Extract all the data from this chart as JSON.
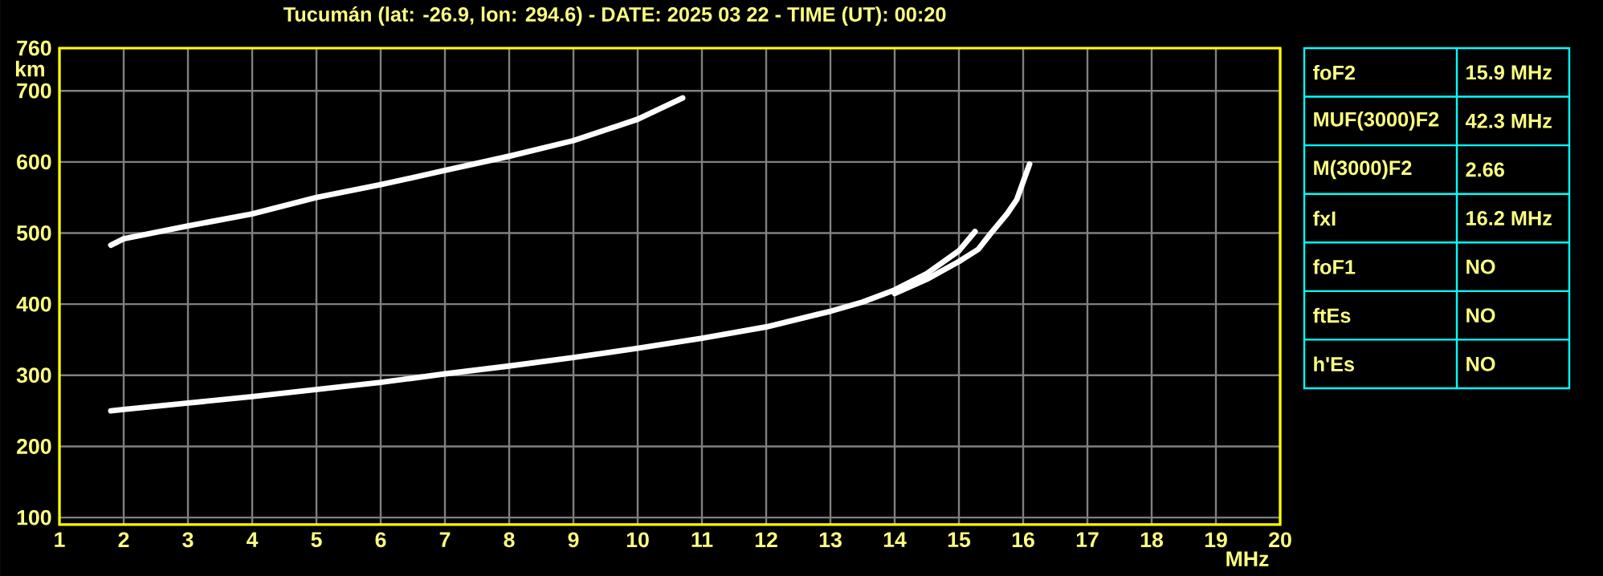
{
  "chart_data": [
    {
      "type": "line",
      "title": "Tucumán (lat: -26.9, lon: 294.6) - DATE: 2025 03 22 - TIME (UT): 00:20",
      "xlabel": "MHz",
      "ylabel": "km",
      "xlim": [
        1,
        20
      ],
      "xticks": [
        1,
        2,
        3,
        4,
        5,
        6,
        7,
        8,
        9,
        10,
        11,
        12,
        13,
        14,
        15,
        16,
        17,
        18,
        19,
        20
      ],
      "ylim": [
        90,
        760
      ],
      "yticks": [
        100,
        200,
        300,
        400,
        500,
        600,
        700,
        760
      ],
      "grid": true,
      "marker": "none",
      "line_style": "solid",
      "series": [
        {
          "color": "#ffffff",
          "x": [
            1.8,
            2,
            3,
            4,
            5,
            6,
            7,
            8,
            9,
            10,
            11,
            12,
            13,
            13.5,
            14,
            14.5,
            15,
            15.25
          ],
          "values": [
            250,
            252,
            261,
            270,
            280,
            290,
            302,
            313,
            325,
            338,
            352,
            368,
            390,
            403,
            420,
            443,
            475,
            502
          ]
        },
        {
          "color": "#ffffff",
          "x": [
            14,
            14.5,
            15,
            15.3,
            15.5,
            15.75,
            15.9,
            16,
            16.1
          ],
          "values": [
            415,
            435,
            460,
            477,
            500,
            527,
            547,
            572,
            597
          ]
        },
        {
          "color": "#ffffff",
          "x": [
            1.8,
            2,
            3,
            4,
            5,
            6,
            7,
            8,
            9,
            10,
            10.7
          ],
          "values": [
            483,
            492,
            510,
            527,
            550,
            568,
            588,
            608,
            630,
            660,
            690
          ]
        }
      ]
    },
    {
      "type": "other",
      "annotations": [
        "foF2",
        "15.9 MHz",
        "MUF(3000)F2",
        "42.3 MHz",
        "M(3000)F2",
        "2.66",
        "fxI",
        "16.2 MHz",
        "foF1",
        "NO",
        "ftEs",
        "NO",
        "h'Es",
        "NO"
      ]
    }
  ]
}
